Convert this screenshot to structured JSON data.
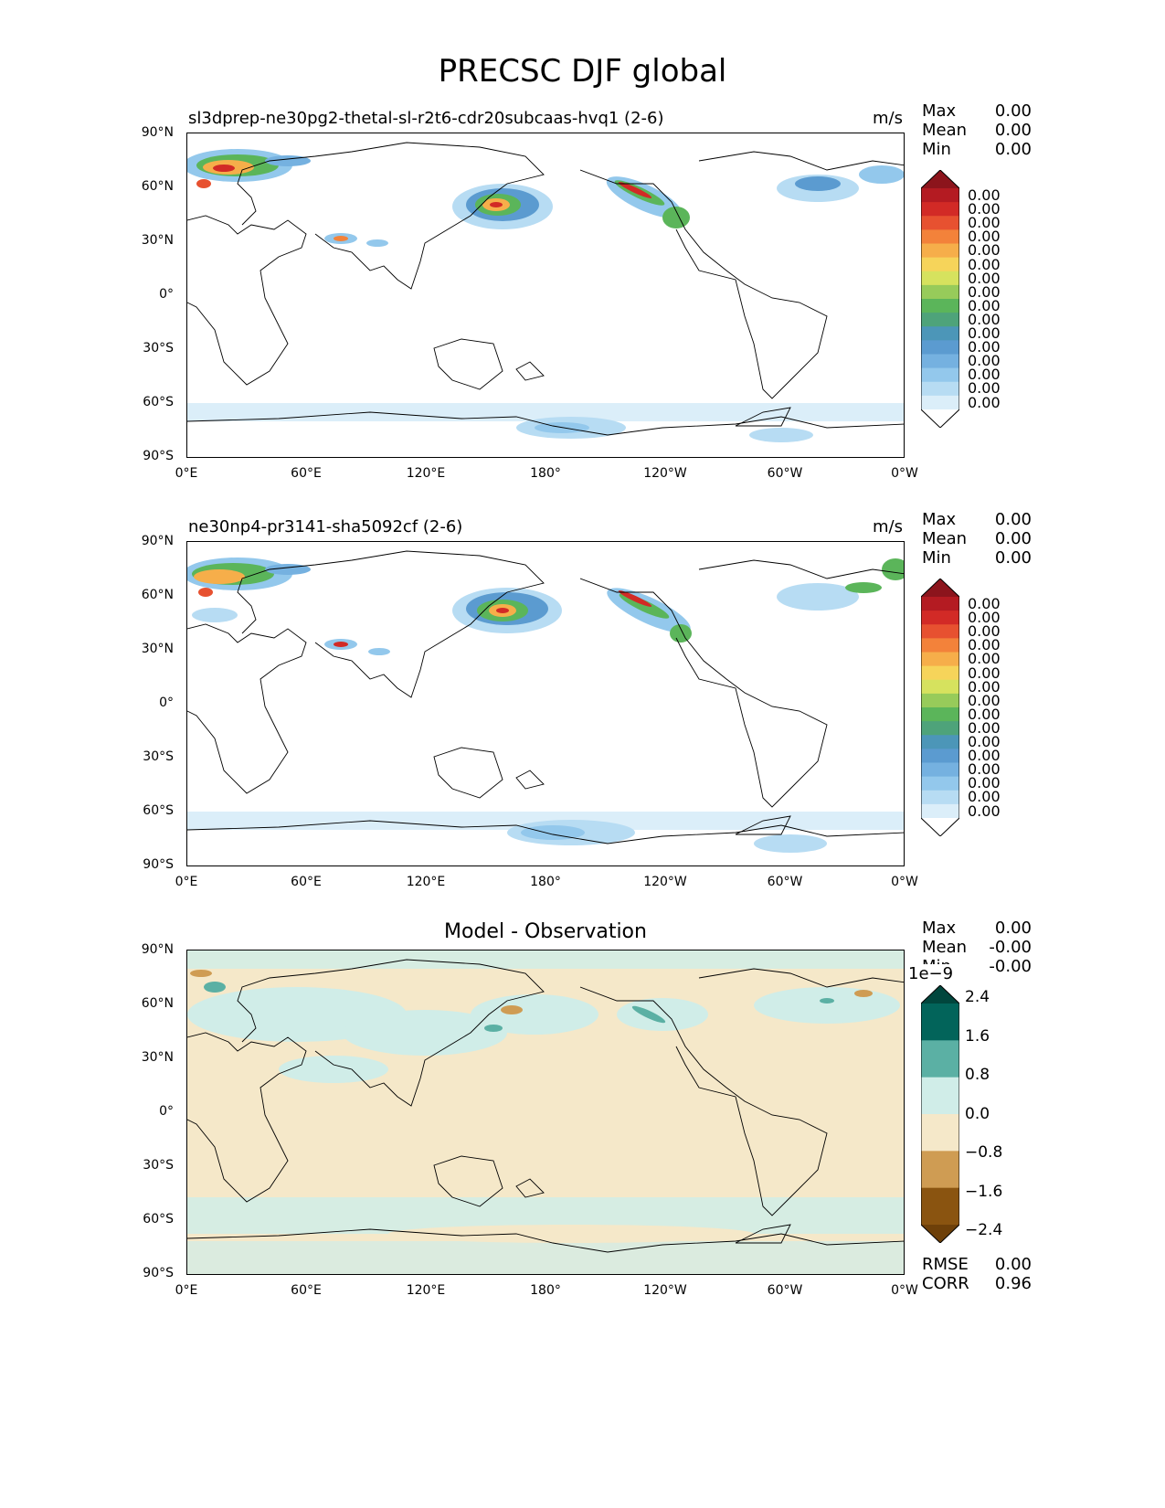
{
  "figure": {
    "title": "PRECSC DJF global"
  },
  "lat_ticks": [
    "90°N",
    "60°N",
    "30°N",
    "0°",
    "30°S",
    "60°S",
    "90°S"
  ],
  "lon_ticks": [
    "0°E",
    "60°E",
    "120°E",
    "180°",
    "120°W",
    "60°W",
    "0°W"
  ],
  "panels": [
    {
      "title": "sl3dprep-ne30pg2-thetal-sl-r2t6-cdr20subcaas-hvq1 (2-6)",
      "units": "m/s",
      "stats": [
        {
          "label": "Max",
          "value": "0.00"
        },
        {
          "label": "Mean",
          "value": "0.00"
        },
        {
          "label": "Min",
          "value": "0.00"
        }
      ]
    },
    {
      "title": "ne30np4-pr3141-sha5092cf (2-6)",
      "units": "m/s",
      "stats": [
        {
          "label": "Max",
          "value": "0.00"
        },
        {
          "label": "Mean",
          "value": "0.00"
        },
        {
          "label": "Min",
          "value": "0.00"
        }
      ]
    },
    {
      "title": "Model - Observation",
      "units": "",
      "stats": [
        {
          "label": "Max",
          "value": "0.00"
        },
        {
          "label": "Mean",
          "value": "-0.00"
        },
        {
          "label": "Min",
          "value": "-0.00"
        }
      ],
      "extra_stats": [
        {
          "label": "RMSE",
          "value": "0.00"
        },
        {
          "label": "CORR",
          "value": "0.96"
        }
      ],
      "scale_label": "1e−9"
    }
  ],
  "colorbar_main": {
    "labels": [
      "0.00",
      "0.00",
      "0.00",
      "0.00",
      "0.00",
      "0.00",
      "0.00",
      "0.00",
      "0.00",
      "0.00",
      "0.00",
      "0.00",
      "0.00",
      "0.00",
      "0.00",
      "0.00"
    ],
    "colors": [
      "#ffffff",
      "#dbeef9",
      "#b7dcf3",
      "#93c8ec",
      "#75b1e0",
      "#5b9bd0",
      "#4c96b8",
      "#4ea37a",
      "#5bb55a",
      "#97cb5a",
      "#d6e25e",
      "#f6d45a",
      "#f6ae4a",
      "#f3823a",
      "#e75130",
      "#d22a26",
      "#b41b22",
      "#8c141c"
    ]
  },
  "colorbar_diff": {
    "labels": [
      "2.4",
      "1.6",
      "0.8",
      "0.0",
      "−0.8",
      "−1.6",
      "−2.4"
    ],
    "colors": [
      "#6e4009",
      "#8a5410",
      "#cf9c53",
      "#f5e8c9",
      "#d0ede8",
      "#5bb0a4",
      "#02645a",
      "#01463d"
    ]
  },
  "colors": {
    "land_line": "#000000",
    "diff_background": "#f5e8c9",
    "diff_positive": "#d0ede8"
  }
}
